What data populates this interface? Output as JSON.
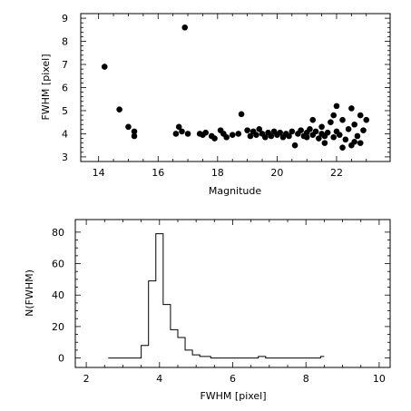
{
  "chart_data": [
    {
      "type": "scatter",
      "xlabel": "Magnitude",
      "ylabel": "FWHM [pixel]",
      "xlim": [
        13.4,
        23.8
      ],
      "ylim": [
        2.8,
        9.2
      ],
      "xticks": [
        14,
        16,
        18,
        20,
        22
      ],
      "yticks": [
        3,
        4,
        5,
        6,
        7,
        8,
        9
      ],
      "series": [
        {
          "points": [
            [
              14.2,
              6.9
            ],
            [
              14.7,
              5.05
            ],
            [
              15.0,
              4.3
            ],
            [
              15.2,
              4.1
            ],
            [
              15.2,
              3.9
            ],
            [
              16.9,
              8.6
            ],
            [
              16.6,
              4.0
            ],
            [
              16.7,
              4.3
            ],
            [
              16.8,
              4.1
            ],
            [
              17.0,
              4.0
            ],
            [
              17.4,
              4.0
            ],
            [
              17.5,
              3.95
            ],
            [
              17.6,
              4.05
            ],
            [
              17.8,
              3.9
            ],
            [
              17.9,
              3.8
            ],
            [
              18.1,
              4.15
            ],
            [
              18.2,
              4.0
            ],
            [
              18.3,
              3.85
            ],
            [
              18.5,
              3.95
            ],
            [
              18.7,
              4.0
            ],
            [
              18.8,
              4.85
            ],
            [
              19.0,
              4.15
            ],
            [
              19.1,
              3.9
            ],
            [
              19.2,
              4.1
            ],
            [
              19.3,
              3.95
            ],
            [
              19.4,
              4.2
            ],
            [
              19.5,
              4.0
            ],
            [
              19.6,
              3.85
            ],
            [
              19.7,
              4.05
            ],
            [
              19.8,
              3.9
            ],
            [
              19.9,
              4.1
            ],
            [
              20.0,
              3.95
            ],
            [
              20.1,
              4.05
            ],
            [
              20.2,
              3.85
            ],
            [
              20.3,
              4.0
            ],
            [
              20.4,
              3.9
            ],
            [
              20.5,
              4.1
            ],
            [
              20.6,
              3.5
            ],
            [
              20.7,
              4.0
            ],
            [
              20.8,
              4.15
            ],
            [
              20.9,
              3.9
            ],
            [
              21.0,
              4.05
            ],
            [
              21.0,
              3.85
            ],
            [
              21.1,
              4.2
            ],
            [
              21.2,
              3.95
            ],
            [
              21.3,
              4.1
            ],
            [
              21.4,
              3.8
            ],
            [
              21.5,
              4.0
            ],
            [
              21.5,
              4.3
            ],
            [
              21.6,
              3.9
            ],
            [
              21.7,
              4.05
            ],
            [
              21.8,
              4.5
            ],
            [
              21.9,
              3.85
            ],
            [
              22.0,
              4.1
            ],
            [
              22.0,
              5.2
            ],
            [
              22.1,
              3.95
            ],
            [
              22.2,
              4.6
            ],
            [
              22.3,
              3.75
            ],
            [
              22.4,
              4.2
            ],
            [
              22.5,
              5.1
            ],
            [
              22.5,
              3.5
            ],
            [
              22.6,
              4.4
            ],
            [
              22.7,
              3.9
            ],
            [
              22.8,
              4.8
            ],
            [
              22.9,
              4.15
            ],
            [
              23.0,
              4.6
            ],
            [
              21.2,
              4.6
            ],
            [
              21.6,
              3.6
            ],
            [
              22.2,
              3.4
            ],
            [
              22.6,
              3.65
            ],
            [
              21.9,
              4.8
            ],
            [
              22.8,
              3.6
            ]
          ]
        }
      ]
    },
    {
      "type": "histogram",
      "xlabel": "FWHM [pixel]",
      "ylabel": "N(FWHM)",
      "xlim": [
        1.7,
        10.3
      ],
      "ylim": [
        -6,
        88
      ],
      "xticks": [
        2,
        4,
        6,
        8,
        10
      ],
      "yticks": [
        0,
        20,
        40,
        60,
        80
      ],
      "bins": {
        "edges": [
          2.6,
          3.5,
          3.7,
          3.9,
          4.1,
          4.3,
          4.5,
          4.7,
          4.9,
          5.1,
          5.4,
          5.8,
          6.7,
          6.9,
          7.1,
          8.4,
          8.5
        ],
        "counts": [
          0,
          8,
          49,
          79,
          34,
          18,
          13,
          5,
          2,
          1,
          0,
          0,
          1,
          0,
          0,
          1
        ]
      }
    }
  ]
}
